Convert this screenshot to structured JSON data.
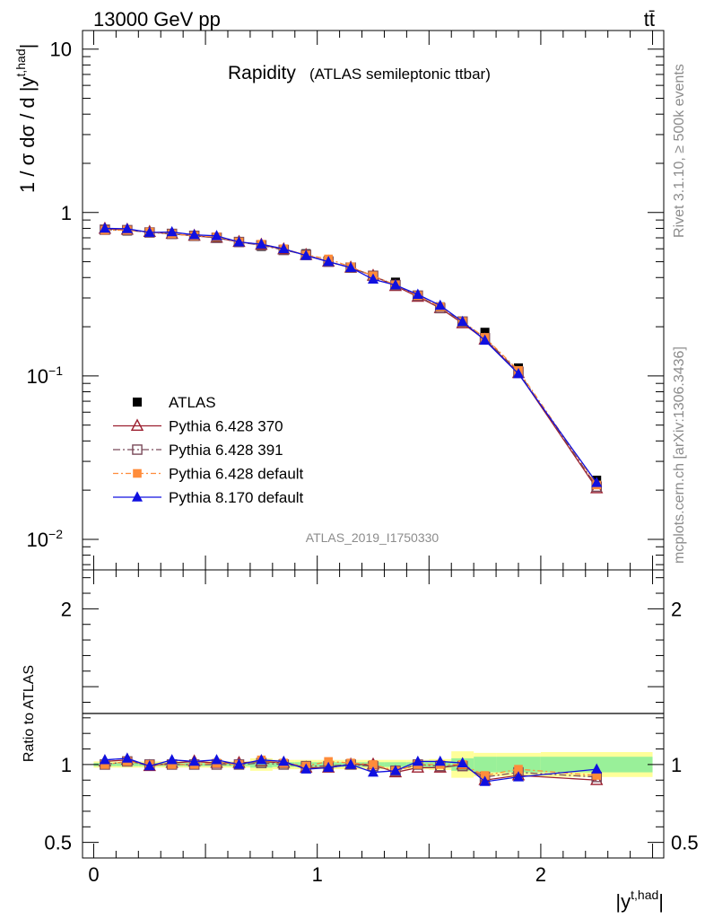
{
  "header": {
    "energy_label": "13000 GeV pp",
    "process_label": "tt̄"
  },
  "side_labels": {
    "rivet": "Rivet 3.1.10, ≥ 500k events",
    "mcplots": "mcplots.cern.ch [arXiv:1306.3436]"
  },
  "main_title": {
    "title": "Rapidity",
    "subtitle": "(ATLAS semileptonic ttbar)"
  },
  "analysis_id": "ATLAS_2019_I1750330",
  "colors": {
    "atlas": "#000000",
    "p370": "#9c1f2f",
    "p391": "#7a4a5a",
    "p6def": "#ff8c3a",
    "p8def": "#1010e0",
    "band_green": "#99f099",
    "band_yellow": "#ffff99"
  },
  "chart_data": [
    {
      "type": "scatter",
      "title": "Rapidity (ATLAS semileptonic ttbar)",
      "xlabel": "|y^{t,had}|",
      "ylabel": "1 / σ dσ / d |y^{t,had}|",
      "yscale": "log",
      "xlim": [
        -0.05,
        2.55
      ],
      "ylim": [
        0.0065,
        13
      ],
      "x_ticks": [
        "0",
        "1",
        "2"
      ],
      "y_ticks": [
        "10^-2",
        "10^-1",
        "1",
        "10"
      ],
      "legend_position": "bottom-left",
      "bins": [
        [
          0,
          0.1
        ],
        [
          0.1,
          0.2
        ],
        [
          0.2,
          0.3
        ],
        [
          0.3,
          0.4
        ],
        [
          0.4,
          0.5
        ],
        [
          0.5,
          0.6
        ],
        [
          0.6,
          0.7
        ],
        [
          0.7,
          0.8
        ],
        [
          0.8,
          0.9
        ],
        [
          0.9,
          1.0
        ],
        [
          1.0,
          1.1
        ],
        [
          1.1,
          1.2
        ],
        [
          1.2,
          1.3
        ],
        [
          1.3,
          1.4
        ],
        [
          1.4,
          1.5
        ],
        [
          1.5,
          1.6
        ],
        [
          1.6,
          1.7
        ],
        [
          1.7,
          1.8
        ],
        [
          1.8,
          2.0
        ],
        [
          2.0,
          2.5
        ]
      ],
      "x": [
        0.05,
        0.15,
        0.25,
        0.35,
        0.45,
        0.55,
        0.65,
        0.75,
        0.85,
        0.95,
        1.05,
        1.15,
        1.25,
        1.35,
        1.45,
        1.55,
        1.65,
        1.75,
        1.9,
        2.25
      ],
      "series": [
        {
          "name": "ATLAS",
          "key": "atlas",
          "marker": "square",
          "values": [
            0.78,
            0.77,
            0.76,
            0.74,
            0.72,
            0.7,
            0.66,
            0.62,
            0.59,
            0.56,
            0.51,
            0.46,
            0.41,
            0.375,
            0.31,
            0.265,
            0.215,
            0.185,
            0.112,
            0.023
          ]
        },
        {
          "name": "Pythia 6.428 370",
          "key": "p370",
          "marker": "open-triangle",
          "values": [
            0.795,
            0.785,
            0.76,
            0.74,
            0.72,
            0.7,
            0.66,
            0.635,
            0.595,
            0.55,
            0.5,
            0.46,
            0.41,
            0.355,
            0.305,
            0.26,
            0.21,
            0.167,
            0.104,
            0.0205
          ]
        },
        {
          "name": "Pythia 6.428 391",
          "key": "p391",
          "marker": "open-square",
          "values": [
            0.785,
            0.78,
            0.755,
            0.74,
            0.72,
            0.7,
            0.66,
            0.63,
            0.59,
            0.55,
            0.5,
            0.46,
            0.41,
            0.36,
            0.31,
            0.26,
            0.215,
            0.17,
            0.106,
            0.021
          ]
        },
        {
          "name": "Pythia 6.428 default",
          "key": "p6def",
          "marker": "filled-square",
          "values": [
            0.78,
            0.78,
            0.76,
            0.74,
            0.72,
            0.71,
            0.66,
            0.64,
            0.6,
            0.55,
            0.52,
            0.465,
            0.41,
            0.36,
            0.31,
            0.265,
            0.215,
            0.172,
            0.108,
            0.0215
          ]
        },
        {
          "name": "Pythia 8.170 default",
          "key": "p8def",
          "marker": "filled-triangle",
          "values": [
            0.8,
            0.795,
            0.755,
            0.76,
            0.73,
            0.72,
            0.66,
            0.64,
            0.6,
            0.545,
            0.5,
            0.46,
            0.39,
            0.36,
            0.315,
            0.27,
            0.215,
            0.165,
            0.103,
            0.0222
          ]
        }
      ]
    },
    {
      "type": "scatter",
      "xlabel": "|y^{t,had}|",
      "ylabel": "Ratio to ATLAS",
      "xlim": [
        -0.05,
        2.55
      ],
      "ylim": [
        0.4,
        2.25
      ],
      "x_ticks": [
        "0",
        "1",
        "2"
      ],
      "y_ticks": [
        "0.5",
        "1",
        "2"
      ],
      "band_inner_halfwidth": [
        0.01,
        0.01,
        0.01,
        0.01,
        0.01,
        0.01,
        0.01,
        0.02,
        0.015,
        0.015,
        0.015,
        0.015,
        0.015,
        0.015,
        0.015,
        0.02,
        0.04,
        0.05,
        0.05,
        0.05
      ],
      "band_outer_halfwidth": [
        0.02,
        0.02,
        0.02,
        0.02,
        0.02,
        0.02,
        0.02,
        0.04,
        0.03,
        0.03,
        0.03,
        0.03,
        0.03,
        0.03,
        0.03,
        0.035,
        0.085,
        0.075,
        0.075,
        0.08
      ],
      "series": [
        {
          "name": "Pythia 6.428 370",
          "key": "p370",
          "marker": "open-triangle",
          "values": [
            1.02,
            1.03,
            0.99,
            1.01,
            1.02,
            1.01,
            1.01,
            1.02,
            1.01,
            0.98,
            0.98,
            1.0,
            1.0,
            0.95,
            0.98,
            0.98,
            1.0,
            0.9,
            0.93,
            0.9
          ]
        },
        {
          "name": "Pythia 6.428 391",
          "key": "p391",
          "marker": "open-square",
          "values": [
            1.0,
            1.02,
            1.0,
            1.0,
            1.0,
            1.0,
            1.0,
            1.01,
            1.0,
            0.99,
            0.99,
            1.0,
            0.99,
            0.96,
            1.0,
            0.99,
            0.99,
            0.92,
            0.95,
            0.92
          ]
        },
        {
          "name": "Pythia 6.428 default",
          "key": "p6def",
          "marker": "filled-square",
          "values": [
            1.0,
            1.02,
            1.0,
            1.0,
            1.0,
            1.01,
            1.0,
            1.03,
            1.01,
            0.99,
            1.02,
            1.01,
            1.0,
            0.96,
            1.0,
            1.0,
            1.0,
            0.93,
            0.97,
            0.93
          ]
        },
        {
          "name": "Pythia 8.170 default",
          "key": "p8def",
          "marker": "filled-triangle",
          "values": [
            1.03,
            1.04,
            0.99,
            1.03,
            1.02,
            1.03,
            1.0,
            1.03,
            1.02,
            0.97,
            0.98,
            1.0,
            0.95,
            0.96,
            1.02,
            1.02,
            1.01,
            0.89,
            0.92,
            0.97
          ]
        }
      ]
    }
  ]
}
